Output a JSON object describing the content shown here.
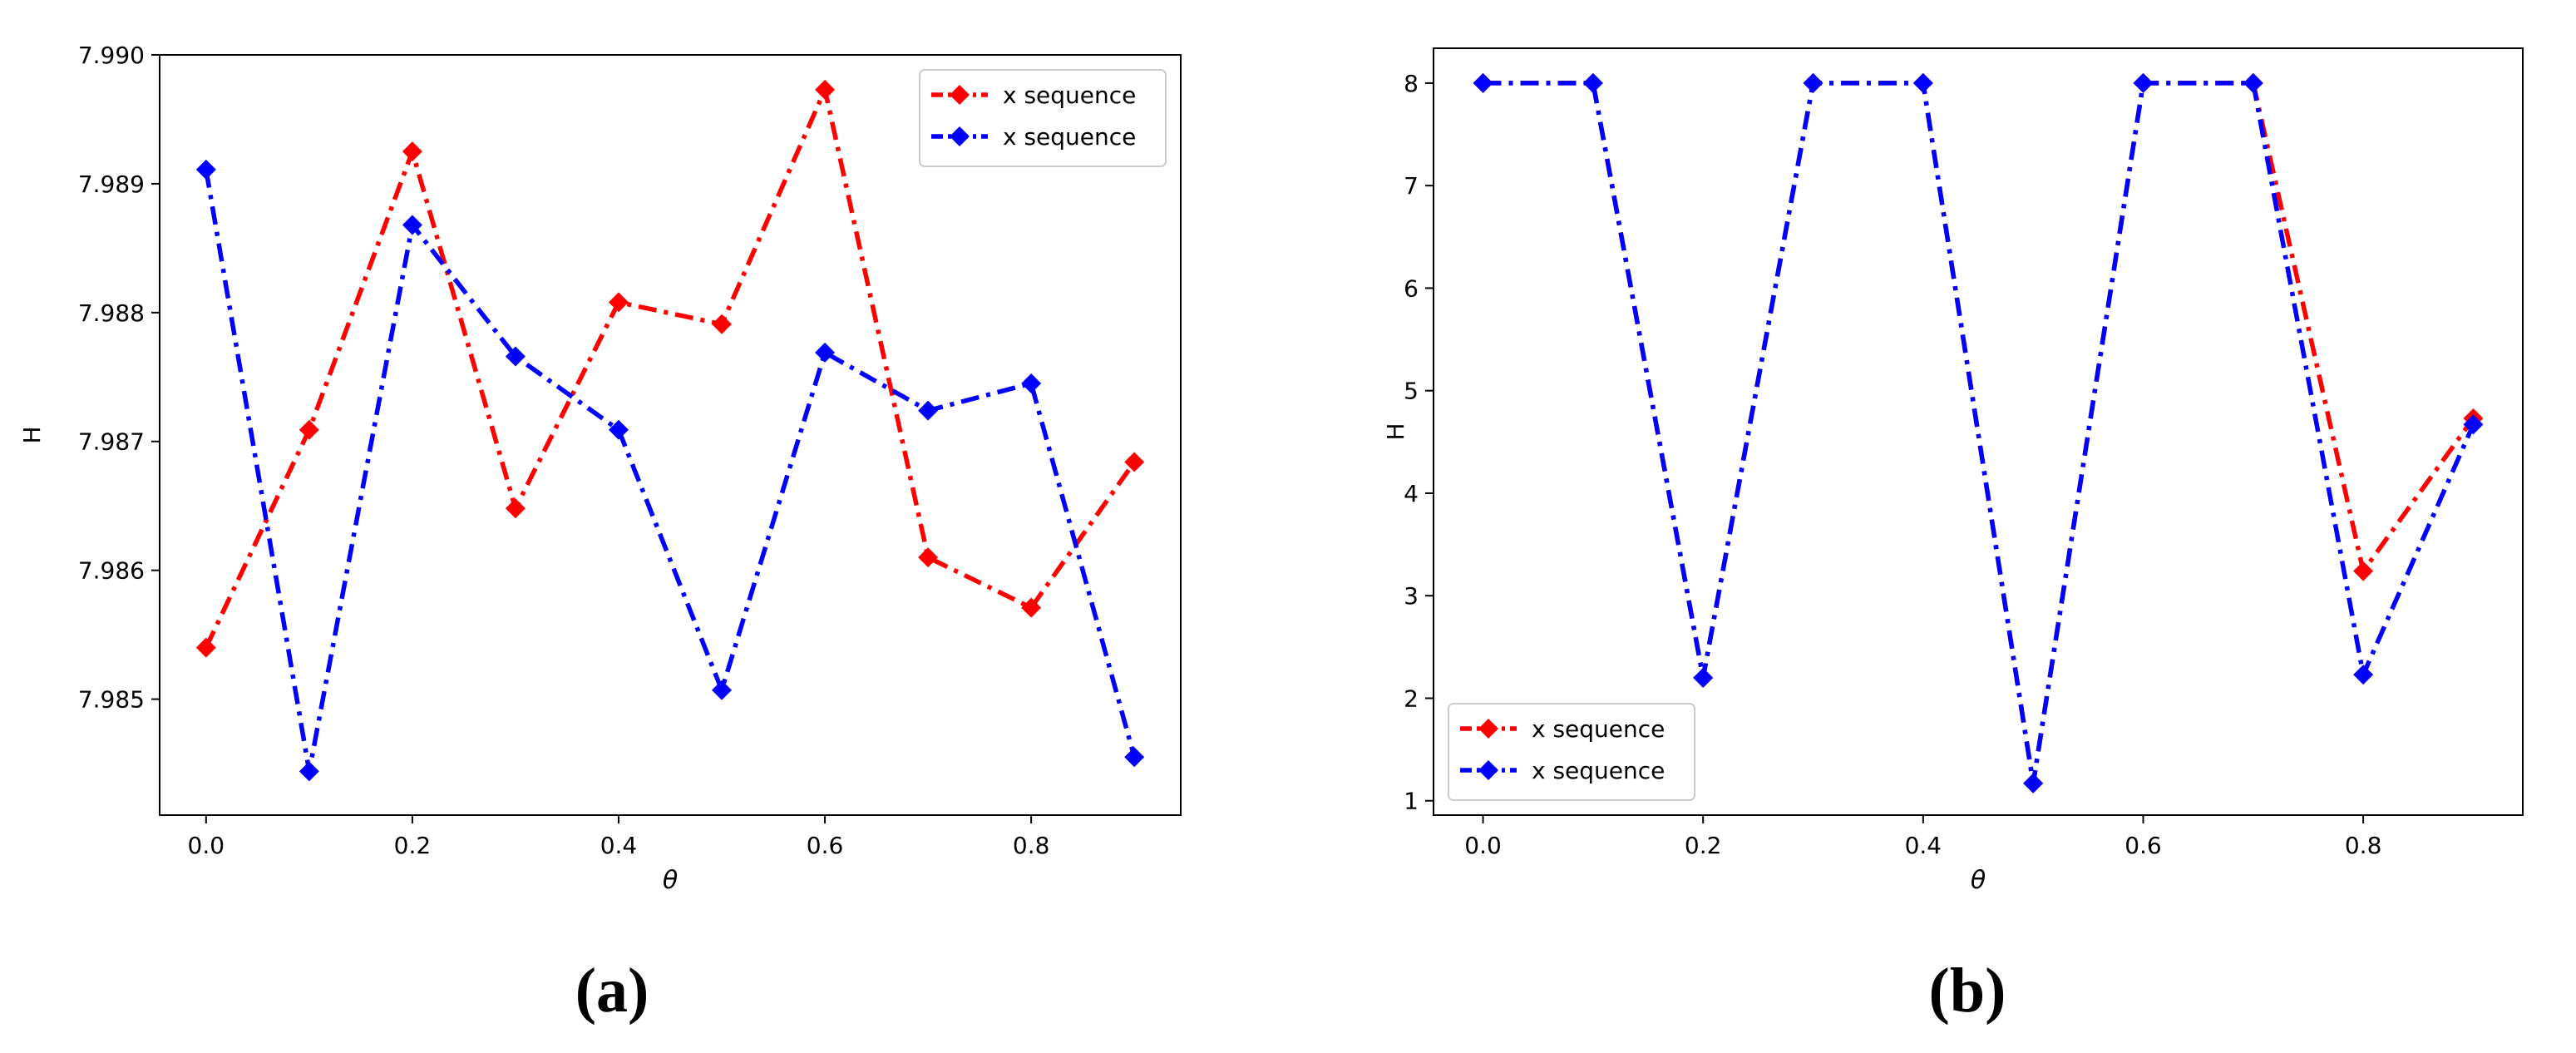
{
  "captions": [
    "(a)",
    "(b)"
  ],
  "chart_data": [
    {
      "type": "line",
      "title": "",
      "xlabel": "θ",
      "ylabel": "H",
      "x": [
        0.0,
        0.1,
        0.2,
        0.3,
        0.4,
        0.5,
        0.6,
        0.7,
        0.8,
        0.9
      ],
      "xlim": [
        -0.045,
        0.945
      ],
      "ylim": [
        7.9841,
        7.99
      ],
      "xticks": [
        0.0,
        0.2,
        0.4,
        0.6,
        0.8
      ],
      "xtick_labels": [
        "0.0",
        "0.2",
        "0.4",
        "0.6",
        "0.8"
      ],
      "yticks": [
        7.985,
        7.986,
        7.987,
        7.988,
        7.989,
        7.99
      ],
      "ytick_labels": [
        "7.985",
        "7.986",
        "7.987",
        "7.988",
        "7.989",
        "7.990"
      ],
      "legend_position": "top-right",
      "series": [
        {
          "name": "x sequence",
          "color": "#ff0000",
          "values": [
            7.9854,
            7.98709,
            7.98925,
            7.98648,
            7.98808,
            7.98791,
            7.98973,
            7.9861,
            7.98571,
            7.98684
          ]
        },
        {
          "name": "x sequence",
          "color": "#0000ff",
          "values": [
            7.98911,
            7.98444,
            7.98868,
            7.98766,
            7.98709,
            7.98507,
            7.98769,
            7.98724,
            7.98745,
            7.98455
          ]
        }
      ]
    },
    {
      "type": "line",
      "title": "",
      "xlabel": "θ",
      "ylabel": "H",
      "x": [
        0.0,
        0.1,
        0.2,
        0.3,
        0.4,
        0.5,
        0.6,
        0.7,
        0.8,
        0.9
      ],
      "xlim": [
        -0.045,
        0.945
      ],
      "ylim": [
        0.86,
        8.34
      ],
      "xticks": [
        0.0,
        0.2,
        0.4,
        0.6,
        0.8
      ],
      "xtick_labels": [
        "0.0",
        "0.2",
        "0.4",
        "0.6",
        "0.8"
      ],
      "yticks": [
        1,
        2,
        3,
        4,
        5,
        6,
        7,
        8
      ],
      "ytick_labels": [
        "1",
        "2",
        "3",
        "4",
        "5",
        "6",
        "7",
        "8"
      ],
      "legend_position": "bottom-left",
      "series": [
        {
          "name": "x sequence",
          "color": "#ff0000",
          "values": [
            8.0,
            8.0,
            2.2,
            8.0,
            8.0,
            1.17,
            8.0,
            8.0,
            3.24,
            4.73
          ]
        },
        {
          "name": "x sequence",
          "color": "#0000ff",
          "values": [
            8.0,
            8.0,
            2.2,
            8.0,
            8.0,
            1.17,
            8.0,
            8.0,
            2.23,
            4.67
          ]
        }
      ]
    }
  ]
}
